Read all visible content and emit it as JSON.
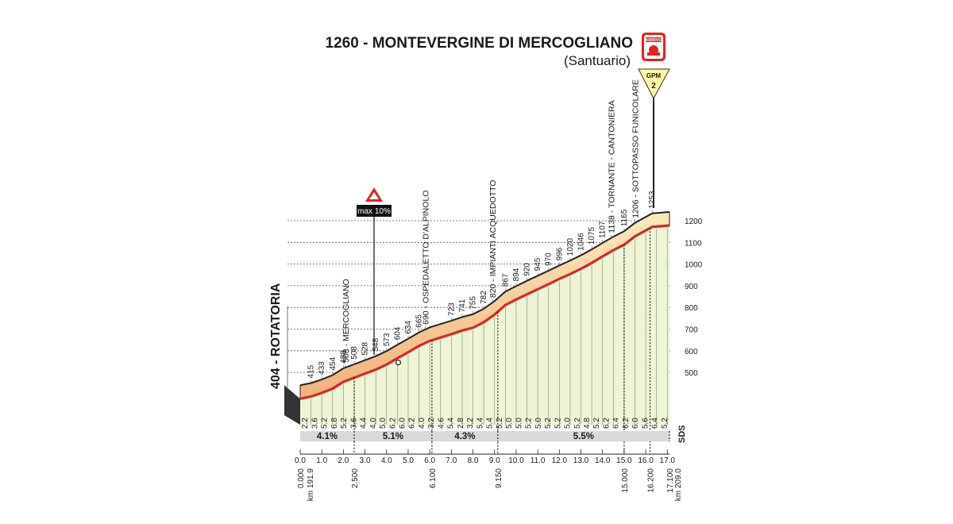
{
  "finish": {
    "title": "1260 - MONTEVERGINE DI MERCOGLIANO",
    "subtitle": "(Santuario)",
    "arrivo_label": "ARRIVO",
    "gpm_label": "GPM",
    "gpm_category": "2"
  },
  "start": {
    "label": "404 - ROTATORIA"
  },
  "max_gradient": {
    "label": "max 10%",
    "km": 4.1
  },
  "brand": "SDS",
  "colors": {
    "road_red": "#d62828",
    "band_top": "#f7dfa8",
    "band_peach": "#f2b884",
    "slope_fill": "#eef5d6",
    "grid_dark": "#555555",
    "grad_bar": "#d9d9d9",
    "signal_red": "#e2231a",
    "gpm_yellow": "#fdf6a3"
  },
  "chart_data": {
    "type": "area",
    "title": "1260 - MONTEVERGINE DI MERCOGLIANO (Santuario)",
    "xlabel": "km",
    "ylabel": "",
    "xlim": [
      0,
      17.1
    ],
    "ylim": [
      400,
      1260
    ],
    "altitude_ticks": [
      500,
      600,
      700,
      800,
      900,
      1000,
      1100,
      1200
    ],
    "km_ticks": [
      "0.0",
      "1.0",
      "2.0",
      "3.0",
      "4.0",
      "5.0",
      "6.0",
      "7.0",
      "8.0",
      "9.0",
      "10.0",
      "11.0",
      "12.0",
      "13.0",
      "14.0",
      "15.0",
      "16.0",
      "17.0"
    ],
    "profile": [
      {
        "km": 0.0,
        "alt": 404
      },
      {
        "km": 0.5,
        "alt": 415
      },
      {
        "km": 1.0,
        "alt": 433
      },
      {
        "km": 1.5,
        "alt": 454
      },
      {
        "km": 2.0,
        "alt": 488
      },
      {
        "km": 2.5,
        "alt": 508
      },
      {
        "km": 3.0,
        "alt": 528
      },
      {
        "km": 3.5,
        "alt": 548
      },
      {
        "km": 4.0,
        "alt": 573
      },
      {
        "km": 4.5,
        "alt": 604
      },
      {
        "km": 5.0,
        "alt": 634
      },
      {
        "km": 5.5,
        "alt": 665
      },
      {
        "km": 6.0,
        "alt": 690
      },
      {
        "km": 7.0,
        "alt": 723
      },
      {
        "km": 7.5,
        "alt": 741
      },
      {
        "km": 8.0,
        "alt": 755
      },
      {
        "km": 8.5,
        "alt": 782
      },
      {
        "km": 9.0,
        "alt": 820
      },
      {
        "km": 9.5,
        "alt": 867
      },
      {
        "km": 10.0,
        "alt": 894
      },
      {
        "km": 10.5,
        "alt": 920
      },
      {
        "km": 11.0,
        "alt": 945
      },
      {
        "km": 11.5,
        "alt": 970
      },
      {
        "km": 12.0,
        "alt": 996
      },
      {
        "km": 12.5,
        "alt": 1020
      },
      {
        "km": 13.0,
        "alt": 1046
      },
      {
        "km": 13.5,
        "alt": 1075
      },
      {
        "km": 14.0,
        "alt": 1107
      },
      {
        "km": 14.5,
        "alt": 1138
      },
      {
        "km": 15.0,
        "alt": 1165
      },
      {
        "km": 15.5,
        "alt": 1206
      },
      {
        "km": 16.3,
        "alt": 1253
      },
      {
        "km": 17.1,
        "alt": 1260
      }
    ],
    "segment_gradients": [
      "2.2",
      "3.6",
      "5.2",
      "6.8",
      "5.2",
      "3.6",
      "4.4",
      "4.0",
      "5.0",
      "6.2",
      "6.0",
      "6.2",
      "4.0",
      "3.2",
      "4.6",
      "5.4",
      "2.8",
      "3.2",
      "5.4",
      "5.4",
      "5.2",
      "5.0",
      "5.0",
      "5.2",
      "5.0",
      "5.2",
      "5.2",
      "5.0",
      "5.2",
      "4.8",
      "5.2",
      "6.2",
      "6.4",
      "6.2",
      "6.0",
      "5.6",
      "6.4",
      "5.2"
    ],
    "section_gradients": [
      {
        "label": "4.1%",
        "from_km": 0.0,
        "to_km": 2.5
      },
      {
        "label": "5.1%",
        "from_km": 2.5,
        "to_km": 6.1
      },
      {
        "label": "4.3%",
        "from_km": 6.1,
        "to_km": 9.15
      },
      {
        "label": "5.5%",
        "from_km": 9.15,
        "to_km": 17.1
      }
    ],
    "distance_markers": [
      {
        "km": 0.0,
        "label": "0.000"
      },
      {
        "km": 2.5,
        "label": "2.500"
      },
      {
        "km": 6.1,
        "label": "6.100"
      },
      {
        "km": 9.15,
        "label": "9.150"
      },
      {
        "km": 15.0,
        "label": "15.000"
      },
      {
        "km": 16.2,
        "label": "16.200"
      },
      {
        "km": 17.1,
        "label": "17.100"
      }
    ],
    "race_km_start": "km 191.9",
    "race_km_end": "km 209.0",
    "waypoints": [
      {
        "km": 2.1,
        "label": "508 - MERCOGLIANO"
      },
      {
        "km": 5.8,
        "label": "690 - OSPEDALETTO D'ALPINOLO"
      },
      {
        "km": 8.9,
        "label": "820 - IMPIANTI ACQUEDOTTO"
      },
      {
        "km": 14.4,
        "label": "1138 - TORNANTE - CANTONIERA"
      },
      {
        "km": 15.5,
        "label": "1206 - SOTTOPASSO FUNICOLARE"
      }
    ]
  }
}
